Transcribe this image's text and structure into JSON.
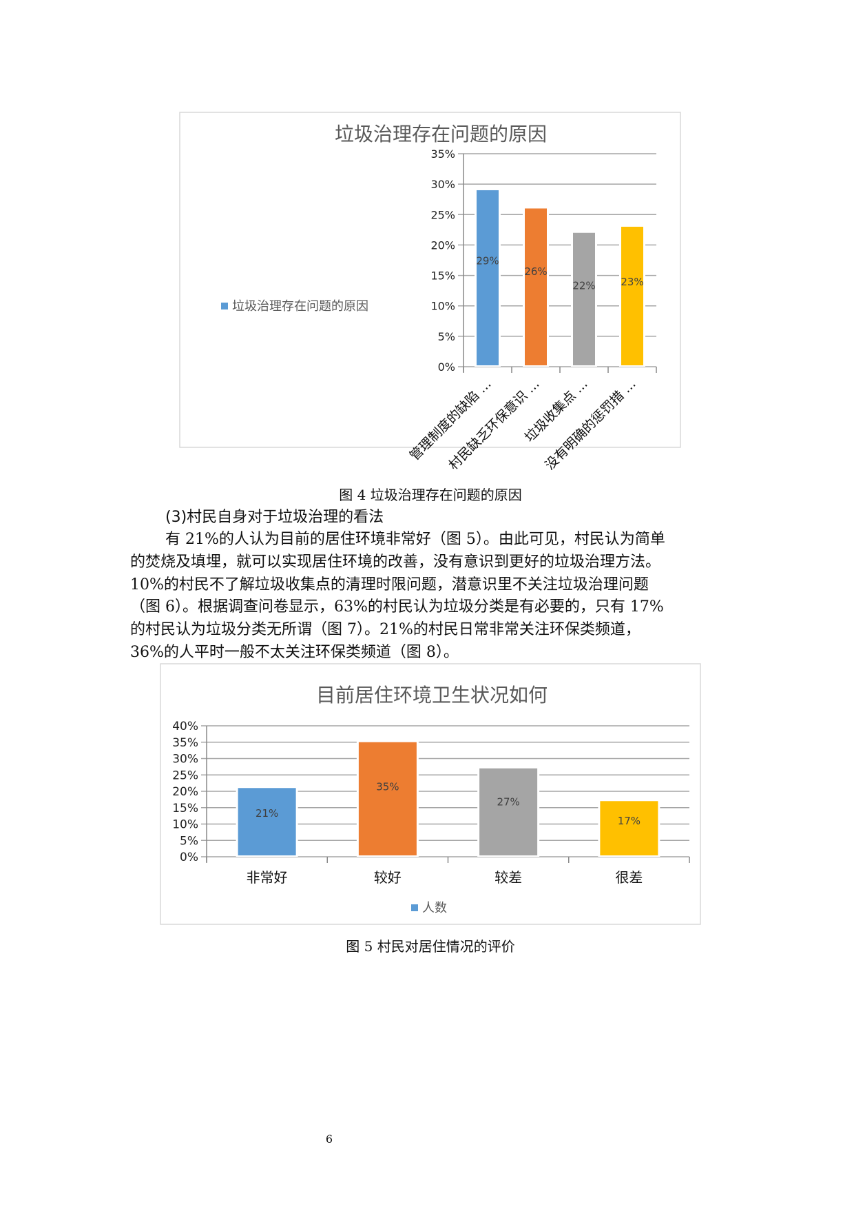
{
  "chart_data": [
    {
      "type": "bar",
      "title": "垃圾治理存在问题的原因",
      "categories": [
        "管理制度的缺陷 ...",
        "村民缺乏环保意识 ...",
        "垃圾收集点 ...",
        "没有明确的惩罚措 ..."
      ],
      "values": [
        29,
        26,
        22,
        23
      ],
      "data_labels": [
        "29%",
        "26%",
        "22%",
        "23%"
      ],
      "colors": [
        "#5B9BD5",
        "#ED7D31",
        "#A5A5A5",
        "#FFC000"
      ],
      "legend": "垃圾治理存在问题的原因",
      "legend_placement": "left",
      "ylim": [
        0,
        35
      ],
      "yticks": [
        "0%",
        "5%",
        "10%",
        "15%",
        "20%",
        "25%",
        "30%",
        "35%"
      ],
      "grid": true,
      "xlabel": "",
      "ylabel": ""
    },
    {
      "type": "bar",
      "title": "目前居住环境卫生状况如何",
      "categories": [
        "非常好",
        "较好",
        "较差",
        "很差"
      ],
      "values": [
        21,
        35,
        27,
        17
      ],
      "data_labels": [
        "21%",
        "35%",
        "27%",
        "17%"
      ],
      "colors": [
        "#5B9BD5",
        "#ED7D31",
        "#A5A5A5",
        "#FFC000"
      ],
      "legend": "人数",
      "legend_placement": "bottom",
      "ylim": [
        0,
        40
      ],
      "yticks": [
        "0%",
        "5%",
        "10%",
        "15%",
        "20%",
        "25%",
        "30%",
        "35%",
        "40%"
      ],
      "grid": true,
      "xlabel": "",
      "ylabel": ""
    }
  ],
  "captions": {
    "fig4": "图 4  垃圾治理存在问题的原因",
    "fig5": "图 5  村民对居住情况的评价"
  },
  "section_heading": "(3)村民自身对于垃圾治理的看法",
  "paragraph_lines": [
    "有 21%的人认为目前的居住环境非常好（图 5）。由此可见，村民认为简单",
    "的焚烧及填埋，就可以实现居住环境的改善，没有意识到更好的垃圾治理方法。",
    "10%的村民不了解垃圾收集点的清理时限问题，潜意识里不关注垃圾治理问题",
    "（图 6）。根据调查问卷显示，63%的村民认为垃圾分类是有必要的，只有 17%",
    "的村民认为垃圾分类无所谓（图 7）。21%的村民日常非常关注环保类频道，",
    "36%的人平时一般不太关注环保类频道（图 8）。"
  ],
  "page_number": "6"
}
